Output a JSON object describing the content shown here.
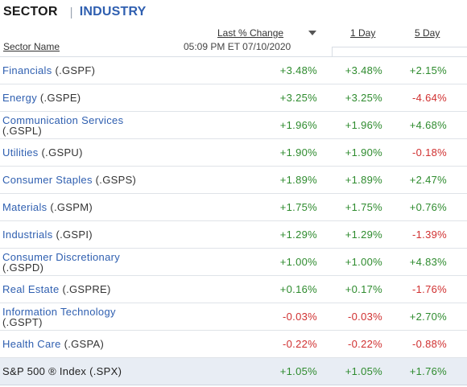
{
  "tabs": {
    "active": "SECTOR",
    "separator": "|",
    "other": "INDUSTRY"
  },
  "columns": {
    "name": "Sector Name",
    "last": "Last % Change",
    "one_day": "1 Day",
    "five_day": "5 Day"
  },
  "timestamp": "05:09 PM ET 07/10/2020",
  "colors": {
    "positive": "#2e8b2e",
    "negative": "#d03030",
    "link": "#2f5fb0"
  },
  "rows": [
    {
      "name": "Financials",
      "ticker": "(.GSPF)",
      "last": "+3.48%",
      "one_day": "+3.48%",
      "five_day": "+2.15%"
    },
    {
      "name": "Energy",
      "ticker": "(.GSPE)",
      "last": "+3.25%",
      "one_day": "+3.25%",
      "five_day": "-4.64%"
    },
    {
      "name": "Communication Services",
      "ticker": "(.GSPL)",
      "last": "+1.96%",
      "one_day": "+1.96%",
      "five_day": "+4.68%"
    },
    {
      "name": "Utilities",
      "ticker": "(.GSPU)",
      "last": "+1.90%",
      "one_day": "+1.90%",
      "five_day": "-0.18%"
    },
    {
      "name": "Consumer Staples",
      "ticker": "(.GSPS)",
      "last": "+1.89%",
      "one_day": "+1.89%",
      "five_day": "+2.47%"
    },
    {
      "name": "Materials",
      "ticker": "(.GSPM)",
      "last": "+1.75%",
      "one_day": "+1.75%",
      "five_day": "+0.76%"
    },
    {
      "name": "Industrials",
      "ticker": "(.GSPI)",
      "last": "+1.29%",
      "one_day": "+1.29%",
      "five_day": "-1.39%"
    },
    {
      "name": "Consumer Discretionary",
      "ticker": "(.GSPD)",
      "last": "+1.00%",
      "one_day": "+1.00%",
      "five_day": "+4.83%"
    },
    {
      "name": "Real Estate",
      "ticker": "(.GSPRE)",
      "last": "+0.16%",
      "one_day": "+0.17%",
      "five_day": "-1.76%"
    },
    {
      "name": "Information Technology",
      "ticker": "(.GSPT)",
      "last": "-0.03%",
      "one_day": "-0.03%",
      "five_day": "+2.70%"
    },
    {
      "name": "Health Care",
      "ticker": "(.GSPA)",
      "last": "-0.22%",
      "one_day": "-0.22%",
      "five_day": "-0.88%"
    }
  ],
  "total": {
    "name": "S&P 500 ® Index",
    "ticker": "(.SPX)",
    "last": "+1.05%",
    "one_day": "+1.05%",
    "five_day": "+1.76%"
  }
}
